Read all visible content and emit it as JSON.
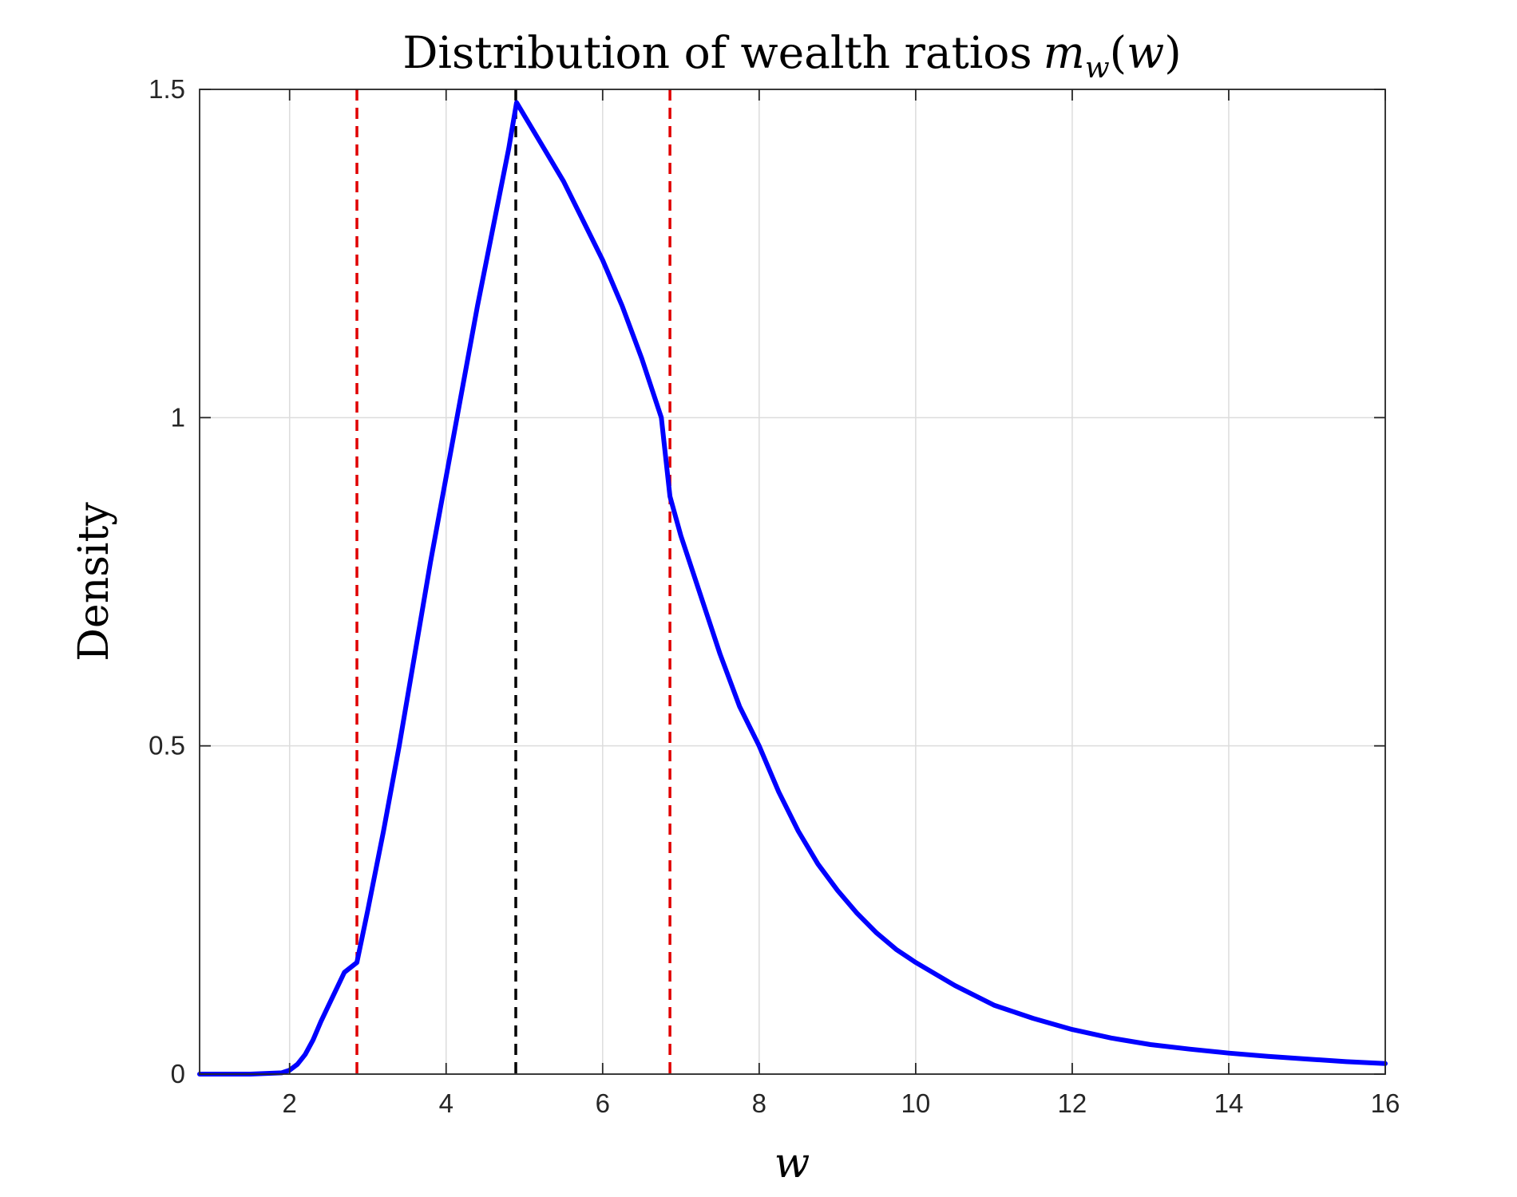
{
  "chart_data": {
    "type": "line",
    "title": "Distribution of wealth ratios",
    "title_math": {
      "symbol": "m",
      "subscript": "w",
      "open": "(",
      "arg": "w",
      "close": ")"
    },
    "xlabel": "w",
    "ylabel": "Density",
    "xlim": [
      0.85,
      16
    ],
    "ylim": [
      0,
      1.5
    ],
    "x_ticks": [
      2,
      4,
      6,
      8,
      10,
      12,
      14,
      16
    ],
    "y_ticks": [
      0,
      0.5,
      1,
      1.5
    ],
    "x_tick_labels": [
      "2",
      "4",
      "6",
      "8",
      "10",
      "12",
      "14",
      "16"
    ],
    "y_tick_labels": [
      "0",
      "0.5",
      "1",
      "1.5"
    ],
    "grid": true,
    "series": [
      {
        "color": "#0000ff",
        "x": [
          0.85,
          1.5,
          1.9,
          2.0,
          2.1,
          2.2,
          2.3,
          2.4,
          2.5,
          2.6,
          2.7,
          2.86,
          3.0,
          3.2,
          3.4,
          3.6,
          3.8,
          4.0,
          4.2,
          4.4,
          4.6,
          4.8,
          4.9,
          5.0,
          5.25,
          5.5,
          5.75,
          6.0,
          6.25,
          6.5,
          6.75,
          6.86,
          7.0,
          7.25,
          7.5,
          7.75,
          8.0,
          8.25,
          8.5,
          8.75,
          9.0,
          9.25,
          9.5,
          9.75,
          10.0,
          10.5,
          11.0,
          11.5,
          12.0,
          12.5,
          13.0,
          13.5,
          14.0,
          14.5,
          15.0,
          15.5,
          16.0
        ],
        "y": [
          0.0,
          0.0,
          0.002,
          0.006,
          0.015,
          0.03,
          0.052,
          0.08,
          0.105,
          0.13,
          0.155,
          0.17,
          0.25,
          0.37,
          0.5,
          0.64,
          0.78,
          0.91,
          1.04,
          1.17,
          1.29,
          1.41,
          1.48,
          1.46,
          1.41,
          1.36,
          1.3,
          1.24,
          1.17,
          1.09,
          1.0,
          0.88,
          0.82,
          0.73,
          0.64,
          0.56,
          0.5,
          0.43,
          0.37,
          0.32,
          0.28,
          0.245,
          0.215,
          0.19,
          0.17,
          0.135,
          0.105,
          0.085,
          0.068,
          0.055,
          0.045,
          0.038,
          0.032,
          0.027,
          0.023,
          0.019,
          0.016
        ]
      }
    ],
    "vertical_lines": [
      {
        "x": 2.86,
        "color": "#e00000",
        "style": "dashed"
      },
      {
        "x": 4.89,
        "color": "#000000",
        "style": "dashed"
      },
      {
        "x": 6.86,
        "color": "#e00000",
        "style": "dashed"
      }
    ]
  }
}
